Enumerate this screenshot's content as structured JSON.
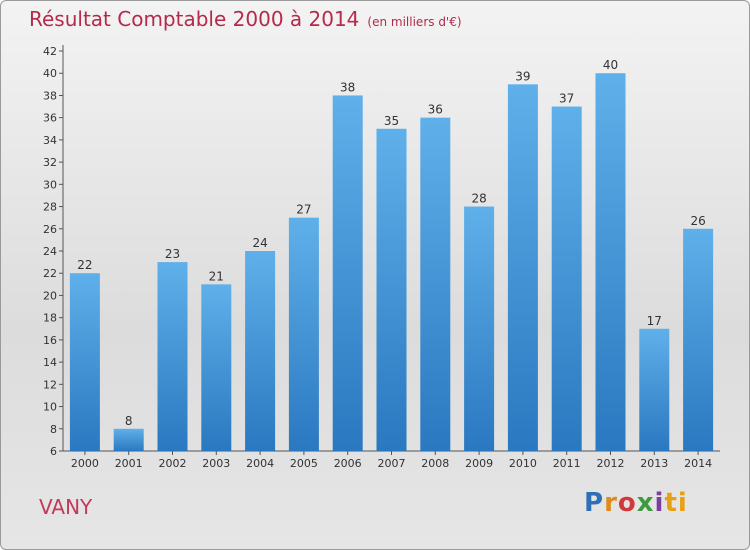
{
  "chart_data": {
    "type": "bar",
    "title": "Résultat Comptable 2000 à 2014",
    "subtitle": "(en milliers d'€)",
    "xlabel": "",
    "ylabel": "",
    "categories": [
      "2000",
      "2001",
      "2002",
      "2003",
      "2004",
      "2005",
      "2006",
      "2007",
      "2008",
      "2009",
      "2010",
      "2011",
      "2012",
      "2013",
      "2014"
    ],
    "values": [
      22,
      8,
      23,
      21,
      24,
      27,
      38,
      35,
      36,
      28,
      39,
      37,
      40,
      17,
      26
    ],
    "ylim": [
      6,
      42
    ],
    "yticks": [
      6,
      8,
      10,
      12,
      14,
      16,
      18,
      20,
      22,
      24,
      26,
      28,
      30,
      32,
      34,
      36,
      38,
      40,
      42
    ],
    "grid": false,
    "bar_color": "#3d8fd6"
  },
  "footer": {
    "commune": "VANY",
    "logo_letters": [
      "P",
      "r",
      "o",
      "x",
      "i",
      "ti"
    ]
  }
}
